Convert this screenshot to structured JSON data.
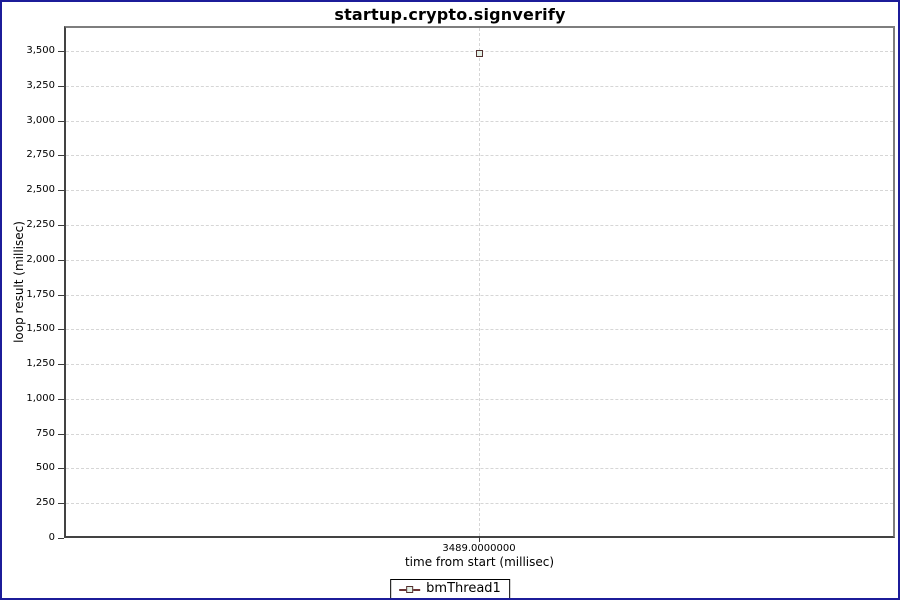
{
  "window": {
    "frame_border_color": "#1c1c99",
    "background_color": "#ffffff"
  },
  "chart_data": {
    "type": "scatter",
    "title": "startup.crypto.signverify",
    "xlabel": "time from start (millisec)",
    "ylabel": "loop result (millisec)",
    "x_tick_labels": [
      "3489.0000000"
    ],
    "y_ticks": [
      0,
      250,
      500,
      750,
      1000,
      1250,
      1500,
      1750,
      2000,
      2250,
      2500,
      2750,
      3000,
      3250,
      3500
    ],
    "ylim": [
      0,
      3675
    ],
    "grid": "dashed",
    "legend_position": "bottom",
    "series": [
      {
        "name": "bmThread1",
        "points": [
          [
            3489,
            3485
          ]
        ],
        "marker": "square",
        "marker_fill": "#e4f0e6",
        "marker_border": "#523030",
        "line_color": "#6a3434"
      }
    ],
    "colors": {
      "plot_outline": "#7e7e7e",
      "axis_line": "#434343",
      "gridline": "#d6d6d6",
      "tick_mark": "#3c3c3c",
      "text": "#000000"
    }
  }
}
